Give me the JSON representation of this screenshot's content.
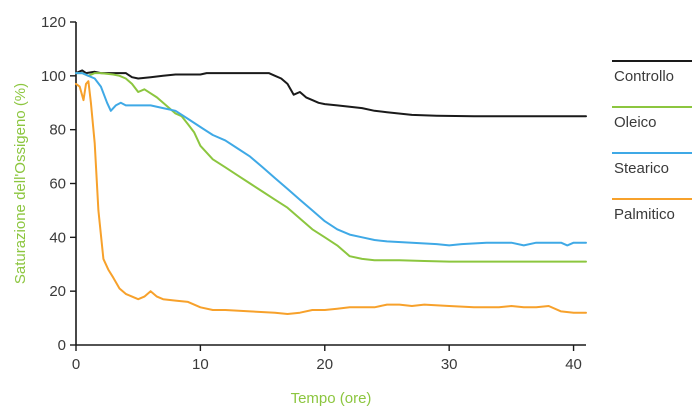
{
  "chart_data": {
    "type": "line",
    "xlabel": "Tempo (ore)",
    "ylabel": "Saturazione dell'Ossigeno (%)",
    "xlim": [
      0,
      41
    ],
    "ylim": [
      0,
      120
    ],
    "x_ticks": [
      0,
      10,
      20,
      30,
      40
    ],
    "y_ticks": [
      0,
      20,
      40,
      60,
      80,
      100,
      120
    ],
    "grid": false,
    "legend_position": "right",
    "axis_label_color": "#8cc63f",
    "series": [
      {
        "name": "Controllo",
        "color": "#1a1a1a",
        "points": [
          [
            0,
            101
          ],
          [
            0.5,
            102
          ],
          [
            0.8,
            101
          ],
          [
            1.5,
            101.5
          ],
          [
            2,
            101
          ],
          [
            3,
            101
          ],
          [
            4,
            101
          ],
          [
            4.5,
            99.5
          ],
          [
            5,
            99
          ],
          [
            6,
            99.5
          ],
          [
            7,
            100
          ],
          [
            8,
            100.5
          ],
          [
            10,
            100.5
          ],
          [
            10.5,
            101
          ],
          [
            12,
            101
          ],
          [
            14,
            101
          ],
          [
            15.5,
            101
          ],
          [
            16,
            100
          ],
          [
            16.5,
            99
          ],
          [
            17,
            97
          ],
          [
            17.5,
            93
          ],
          [
            18,
            94
          ],
          [
            18.5,
            92
          ],
          [
            19,
            91
          ],
          [
            19.5,
            90
          ],
          [
            20,
            89.5
          ],
          [
            21,
            89
          ],
          [
            22,
            88.5
          ],
          [
            23,
            88
          ],
          [
            24,
            87
          ],
          [
            25,
            86.5
          ],
          [
            27,
            85.5
          ],
          [
            29,
            85.2
          ],
          [
            32,
            85
          ],
          [
            35,
            85
          ],
          [
            38,
            85
          ],
          [
            40,
            85
          ],
          [
            41,
            85
          ]
        ]
      },
      {
        "name": "Oleico",
        "color": "#8cc63f",
        "points": [
          [
            0,
            101
          ],
          [
            0.5,
            101
          ],
          [
            1,
            100
          ],
          [
            1.5,
            101
          ],
          [
            2,
            101
          ],
          [
            3,
            100.5
          ],
          [
            3.5,
            100
          ],
          [
            4,
            99
          ],
          [
            4.5,
            97
          ],
          [
            5,
            94
          ],
          [
            5.5,
            95
          ],
          [
            6,
            93.5
          ],
          [
            6.5,
            92
          ],
          [
            7,
            90
          ],
          [
            7.5,
            88
          ],
          [
            8,
            86
          ],
          [
            8.5,
            85
          ],
          [
            9,
            82
          ],
          [
            9.5,
            79
          ],
          [
            10,
            74
          ],
          [
            11,
            69
          ],
          [
            12,
            66
          ],
          [
            13,
            63
          ],
          [
            14,
            60
          ],
          [
            15,
            57
          ],
          [
            16,
            54
          ],
          [
            17,
            51
          ],
          [
            18,
            47
          ],
          [
            19,
            43
          ],
          [
            20,
            40
          ],
          [
            21,
            37
          ],
          [
            22,
            33
          ],
          [
            23,
            32
          ],
          [
            24,
            31.5
          ],
          [
            26,
            31.5
          ],
          [
            28,
            31.2
          ],
          [
            30,
            31
          ],
          [
            32,
            31
          ],
          [
            34,
            31
          ],
          [
            36,
            31
          ],
          [
            38,
            31
          ],
          [
            40,
            31
          ],
          [
            41,
            31
          ]
        ]
      },
      {
        "name": "Stearico",
        "color": "#3fa9e6",
        "points": [
          [
            0,
            101
          ],
          [
            0.5,
            101
          ],
          [
            1,
            100
          ],
          [
            1.5,
            99
          ],
          [
            2,
            96
          ],
          [
            2.5,
            90
          ],
          [
            2.8,
            87
          ],
          [
            3.2,
            89
          ],
          [
            3.6,
            90
          ],
          [
            4,
            89
          ],
          [
            5,
            89
          ],
          [
            6,
            89
          ],
          [
            7,
            88
          ],
          [
            8,
            87
          ],
          [
            9,
            84
          ],
          [
            10,
            81
          ],
          [
            11,
            78
          ],
          [
            12,
            76
          ],
          [
            13,
            73
          ],
          [
            14,
            70
          ],
          [
            15,
            66
          ],
          [
            16,
            62
          ],
          [
            17,
            58
          ],
          [
            18,
            54
          ],
          [
            19,
            50
          ],
          [
            20,
            46
          ],
          [
            21,
            43
          ],
          [
            22,
            41
          ],
          [
            23,
            40
          ],
          [
            24,
            39
          ],
          [
            25,
            38.5
          ],
          [
            27,
            38
          ],
          [
            29,
            37.5
          ],
          [
            30,
            37
          ],
          [
            31,
            37.5
          ],
          [
            33,
            38
          ],
          [
            35,
            38
          ],
          [
            36,
            37
          ],
          [
            37,
            38
          ],
          [
            39,
            38
          ],
          [
            39.5,
            37
          ],
          [
            40,
            38
          ],
          [
            41,
            38
          ]
        ]
      },
      {
        "name": "Palmitico",
        "color": "#f7a12b",
        "points": [
          [
            0,
            97
          ],
          [
            0.3,
            96
          ],
          [
            0.6,
            91
          ],
          [
            0.8,
            97
          ],
          [
            1,
            98
          ],
          [
            1.2,
            90
          ],
          [
            1.5,
            75
          ],
          [
            1.8,
            50
          ],
          [
            2.2,
            32
          ],
          [
            2.6,
            28
          ],
          [
            3,
            25
          ],
          [
            3.5,
            21
          ],
          [
            4,
            19
          ],
          [
            4.5,
            18
          ],
          [
            5,
            17
          ],
          [
            5.5,
            18
          ],
          [
            6,
            20
          ],
          [
            6.5,
            18
          ],
          [
            7,
            17
          ],
          [
            8,
            16.5
          ],
          [
            9,
            16
          ],
          [
            10,
            14
          ],
          [
            11,
            13
          ],
          [
            12,
            13
          ],
          [
            14,
            12.5
          ],
          [
            16,
            12
          ],
          [
            17,
            11.5
          ],
          [
            18,
            12
          ],
          [
            19,
            13
          ],
          [
            20,
            13
          ],
          [
            21,
            13.5
          ],
          [
            22,
            14
          ],
          [
            24,
            14
          ],
          [
            25,
            15
          ],
          [
            26,
            15
          ],
          [
            27,
            14.5
          ],
          [
            28,
            15
          ],
          [
            30,
            14.5
          ],
          [
            32,
            14
          ],
          [
            34,
            14
          ],
          [
            35,
            14.5
          ],
          [
            36,
            14
          ],
          [
            37,
            14
          ],
          [
            38,
            14.5
          ],
          [
            39,
            12.5
          ],
          [
            40,
            12
          ],
          [
            41,
            12
          ]
        ]
      }
    ]
  }
}
